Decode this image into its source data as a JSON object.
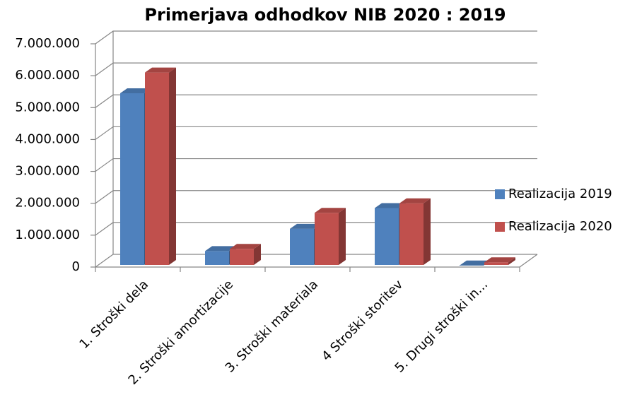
{
  "chart_data": {
    "type": "bar3d",
    "title": "Primerjava odhodkov NIB 2020 : 2019",
    "categories": [
      "1. Stroški dela",
      "2. Stroški amortizacije",
      "3. Stroški materiala",
      "4 Stroški storitev",
      "5. Drugi stroški in..."
    ],
    "series": [
      {
        "name": "Realizacija 2019",
        "color": "#4f81bd",
        "values": [
          5450000,
          500000,
          1200000,
          1850000,
          50000
        ]
      },
      {
        "name": "Realizacija 2020",
        "color": "#c0504d",
        "values": [
          6100000,
          570000,
          1700000,
          2000000,
          150000
        ]
      }
    ],
    "ylim": [
      0,
      7000000
    ],
    "yticks": [
      0,
      {
        "value": 1000000,
        "label": "1.000.000"
      },
      {
        "value": 2000000,
        "label": "2.000.000"
      },
      {
        "value": 3000000,
        "label": "3.000.000"
      },
      {
        "value": 4000000,
        "label": "4.000.000"
      },
      {
        "value": 5000000,
        "label": "5.000.000"
      },
      {
        "value": 6000000,
        "label": "6.000.000"
      },
      {
        "value": 7000000,
        "label": "7.000.000"
      }
    ],
    "grid": true,
    "legend": "right"
  }
}
